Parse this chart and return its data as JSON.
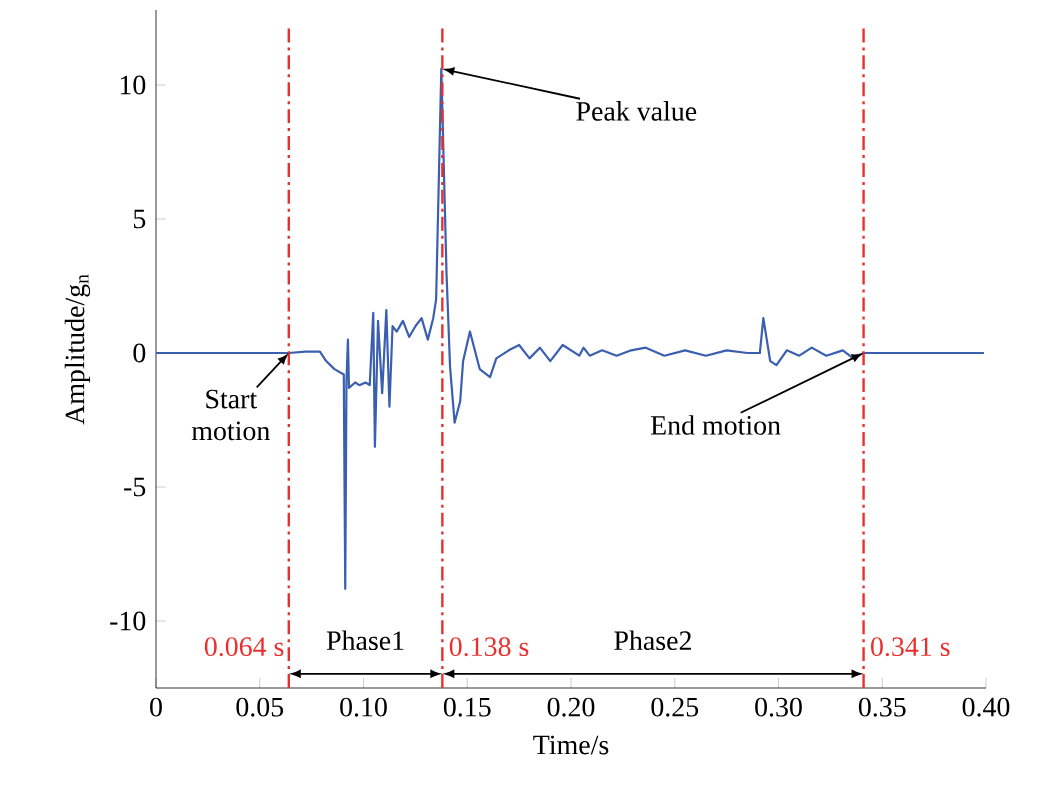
{
  "chart_data": {
    "type": "line",
    "xlabel": "Time/s",
    "ylabel": "Amplitude/g$_{n}$",
    "xlim": [
      0,
      0.4
    ],
    "ylim": [
      -12.5,
      12.8
    ],
    "xticks": [
      0,
      0.05,
      {
        "value": 0.1,
        "label": "0.10"
      },
      0.15,
      {
        "value": 0.2,
        "label": "0.20"
      },
      0.25,
      {
        "value": 0.3,
        "label": "0.30"
      },
      0.35,
      {
        "value": 0.4,
        "label": "0.40"
      }
    ],
    "yticks": [
      -10,
      -5,
      0,
      5,
      10
    ],
    "grid": false,
    "marker": "none",
    "line_style": "solid",
    "series": [
      {
        "color": "#3a5fb0",
        "x": [
          0,
          0.064,
          0.072,
          0.079,
          0.082,
          0.086,
          0.0905,
          0.0912,
          0.0918,
          0.0925,
          0.093,
          0.096,
          0.098,
          0.101,
          0.103,
          0.1047,
          0.1055,
          0.107,
          0.109,
          0.111,
          0.1125,
          0.114,
          0.116,
          0.119,
          0.122,
          0.125,
          0.128,
          0.131,
          0.1336,
          0.135,
          0.1375,
          0.14,
          0.1417,
          0.1439,
          0.1466,
          0.148,
          0.1513,
          0.156,
          0.161,
          0.164,
          0.17,
          0.175,
          0.18,
          0.185,
          0.19,
          0.196,
          0.204,
          0.206,
          0.209,
          0.215,
          0.222,
          0.229,
          0.236,
          0.245,
          0.255,
          0.265,
          0.275,
          0.285,
          0.291,
          0.2927,
          0.296,
          0.299,
          0.304,
          0.31,
          0.316,
          0.323,
          0.331,
          0.336,
          0.341,
          0.399
        ],
        "values": [
          0,
          0,
          0.05,
          0.05,
          -0.3,
          -0.6,
          -0.8,
          -8.8,
          -1.0,
          0.5,
          -1.3,
          -1.1,
          -1.2,
          -1.1,
          -1.2,
          1.5,
          -3.5,
          1.2,
          -1.5,
          1.6,
          -2.0,
          1.0,
          0.8,
          1.2,
          0.6,
          1.0,
          1.3,
          0.5,
          1.3,
          2.0,
          10.6,
          3.0,
          -0.5,
          -2.6,
          -1.8,
          -0.3,
          0.8,
          -0.6,
          -0.9,
          -0.2,
          0.1,
          0.3,
          -0.2,
          0.2,
          -0.3,
          0.3,
          -0.1,
          0.2,
          -0.1,
          0.1,
          -0.1,
          0.1,
          0.2,
          -0.1,
          0.1,
          -0.1,
          0.1,
          0,
          0,
          1.3,
          -0.3,
          -0.45,
          0.1,
          -0.1,
          0.2,
          -0.1,
          0.1,
          -0.2,
          0,
          0
        ]
      }
    ],
    "ref_lines": [
      {
        "axis": "x",
        "value": 0.064,
        "label": "0.064 s",
        "color": "#e8312f"
      },
      {
        "axis": "x",
        "value": 0.138,
        "label": "0.138 s",
        "color": "#e8312f"
      },
      {
        "axis": "x",
        "value": 0.341,
        "label": "0.341 s",
        "color": "#e8312f"
      }
    ],
    "annotations": [
      {
        "text": "Start motion",
        "x": 0.064,
        "y": 0
      },
      {
        "text": "Peak value",
        "x": 0.138,
        "y": 10.6
      },
      {
        "text": "End motion",
        "x": 0.341,
        "y": 0
      },
      "Phase1",
      "Phase2"
    ]
  }
}
